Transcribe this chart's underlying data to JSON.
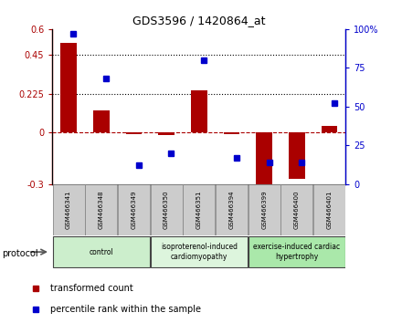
{
  "title": "GDS3596 / 1420864_at",
  "samples": [
    "GSM466341",
    "GSM466348",
    "GSM466349",
    "GSM466350",
    "GSM466351",
    "GSM466394",
    "GSM466399",
    "GSM466400",
    "GSM466401"
  ],
  "red_values": [
    0.52,
    0.13,
    -0.01,
    -0.015,
    0.245,
    -0.01,
    -0.36,
    -0.27,
    0.04
  ],
  "blue_values": [
    97,
    68,
    12,
    20,
    80,
    17,
    14,
    14,
    52
  ],
  "groups": [
    {
      "label": "control",
      "start": 0,
      "end": 3,
      "color": "#cceecc"
    },
    {
      "label": "isoproterenol-induced\ncardiomyopathy",
      "start": 3,
      "end": 6,
      "color": "#ddf5dd"
    },
    {
      "label": "exercise-induced cardiac\nhypertrophy",
      "start": 6,
      "end": 9,
      "color": "#aae8aa"
    }
  ],
  "ylim_left": [
    -0.3,
    0.6
  ],
  "ylim_right": [
    0,
    100
  ],
  "yticks_left": [
    -0.3,
    0,
    0.225,
    0.45,
    0.6
  ],
  "ytick_labels_left": [
    "-0.3",
    "0",
    "0.225",
    "0.45",
    "0.6"
  ],
  "yticks_right": [
    0,
    25,
    50,
    75,
    100
  ],
  "ytick_labels_right": [
    "0",
    "25",
    "50",
    "75",
    "100%"
  ],
  "hlines": [
    0.225,
    0.45
  ],
  "red_color": "#aa0000",
  "blue_color": "#0000cc",
  "bar_width": 0.5,
  "legend_red": "transformed count",
  "legend_blue": "percentile rank within the sample",
  "bg_color": "#ffffff"
}
